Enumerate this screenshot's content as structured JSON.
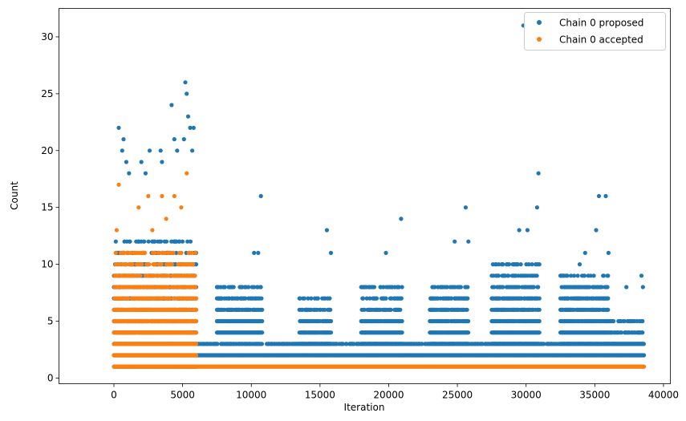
{
  "chart_data": {
    "type": "scatter",
    "xlabel": "Iteration",
    "ylabel": "Count",
    "xlim": [
      -4000,
      40500
    ],
    "ylim": [
      -0.5,
      32.5
    ],
    "xticks": [
      0,
      5000,
      10000,
      15000,
      20000,
      25000,
      30000,
      35000,
      40000
    ],
    "yticks": [
      0,
      5,
      10,
      15,
      20,
      25,
      30
    ],
    "grid": false,
    "legend_position": "top-right",
    "series": [
      {
        "name": "Chain 0 proposed",
        "color": "#1f77b4",
        "dense_bands": [
          {
            "x": [
              0,
              6000
            ],
            "y": [
              1,
              12
            ]
          },
          {
            "x": [
              6000,
              38600
            ],
            "y": [
              2,
              3
            ]
          },
          {
            "x": [
              7500,
              10800
            ],
            "y": [
              4,
              8
            ]
          },
          {
            "x": [
              13500,
              15800
            ],
            "y": [
              3,
              7
            ]
          },
          {
            "x": [
              18000,
              21000
            ],
            "y": [
              3,
              8
            ]
          },
          {
            "x": [
              23000,
              25800
            ],
            "y": [
              3,
              8
            ]
          },
          {
            "x": [
              27500,
              31000
            ],
            "y": [
              3,
              10
            ]
          },
          {
            "x": [
              32500,
              36000
            ],
            "y": [
              3,
              9
            ]
          },
          {
            "x": [
              36000,
              38600
            ],
            "y": [
              3,
              5
            ]
          }
        ],
        "outliers": [
          [
            350,
            22
          ],
          [
            600,
            20
          ],
          [
            700,
            21
          ],
          [
            900,
            19
          ],
          [
            1100,
            18
          ],
          [
            2000,
            19
          ],
          [
            2300,
            18
          ],
          [
            2600,
            20
          ],
          [
            3400,
            20
          ],
          [
            3500,
            19
          ],
          [
            4200,
            24
          ],
          [
            4400,
            21
          ],
          [
            4600,
            20
          ],
          [
            5200,
            26
          ],
          [
            5300,
            25
          ],
          [
            5400,
            23
          ],
          [
            5550,
            22
          ],
          [
            5800,
            22
          ],
          [
            5700,
            20
          ],
          [
            5100,
            21
          ],
          [
            10700,
            16
          ],
          [
            10500,
            11
          ],
          [
            10200,
            11
          ],
          [
            15500,
            13
          ],
          [
            15800,
            11
          ],
          [
            20900,
            14
          ],
          [
            19800,
            11
          ],
          [
            25600,
            15
          ],
          [
            25800,
            12
          ],
          [
            24800,
            12
          ],
          [
            29800,
            31
          ],
          [
            30900,
            18
          ],
          [
            30800,
            15
          ],
          [
            30100,
            13
          ],
          [
            29500,
            13
          ],
          [
            35300,
            16
          ],
          [
            35800,
            16
          ],
          [
            35100,
            13
          ],
          [
            36000,
            11
          ],
          [
            37300,
            8
          ],
          [
            38400,
            9
          ],
          [
            38500,
            8
          ],
          [
            33900,
            10
          ],
          [
            34300,
            11
          ]
        ]
      },
      {
        "name": "Chain 0 accepted",
        "color": "#ff7f0e",
        "dense_bands": [
          {
            "x": [
              0,
              6000
            ],
            "y": [
              1,
              11
            ]
          },
          {
            "x": [
              6000,
              38600
            ],
            "y": [
              1,
              1
            ]
          }
        ],
        "outliers": [
          [
            350,
            17
          ],
          [
            2500,
            16
          ],
          [
            3500,
            16
          ],
          [
            5300,
            18
          ],
          [
            4400,
            16
          ],
          [
            1800,
            15
          ],
          [
            3800,
            14
          ],
          [
            200,
            13
          ],
          [
            2800,
            13
          ],
          [
            4900,
            15
          ]
        ]
      }
    ]
  }
}
